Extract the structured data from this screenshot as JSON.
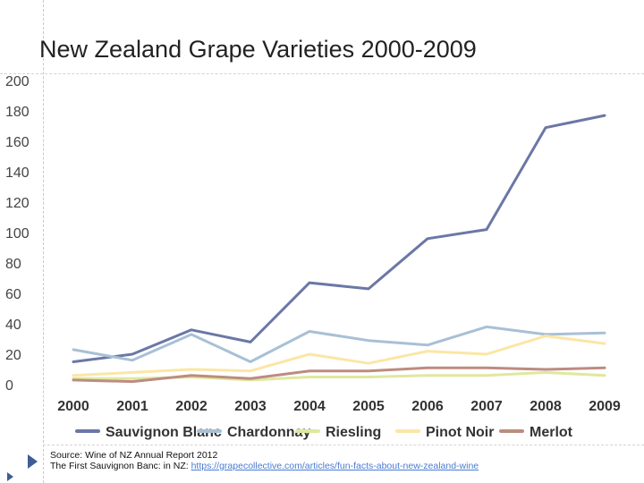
{
  "chart_data": {
    "type": "line",
    "title": "New Zealand Grape Varieties 2000-2009",
    "xlabel": "",
    "ylabel": "",
    "ylim": [
      0,
      200
    ],
    "yticks": [
      0,
      20,
      40,
      60,
      80,
      100,
      120,
      140,
      160,
      180,
      200
    ],
    "categories": [
      "2000",
      "2001",
      "2002",
      "2003",
      "2004",
      "2005",
      "2006",
      "2007",
      "2008",
      "2009"
    ],
    "legend_position": "bottom",
    "grid": false,
    "series": [
      {
        "name": "Sauvignon Blanc",
        "color": "#6b77a6",
        "values": [
          15,
          20,
          36,
          28,
          67,
          63,
          96,
          102,
          169,
          177
        ]
      },
      {
        "name": "Chardonnay",
        "color": "#a8c0d6",
        "values": [
          23,
          16,
          33,
          15,
          35,
          29,
          26,
          38,
          33,
          34
        ]
      },
      {
        "name": "Riesling",
        "color": "#dfe89e",
        "values": [
          4,
          4,
          5,
          3,
          5,
          5,
          6,
          6,
          8,
          6
        ]
      },
      {
        "name": "Pinot Noir",
        "color": "#fbe6a6",
        "values": [
          6,
          8,
          10,
          9,
          20,
          14,
          22,
          20,
          32,
          27
        ]
      },
      {
        "name": "Merlot",
        "color": "#bd8c80",
        "values": [
          3,
          2,
          6,
          4,
          9,
          9,
          11,
          11,
          10,
          11
        ]
      }
    ]
  },
  "source": {
    "line1": "Source: Wine of NZ Annual Report 2012",
    "line2_prefix": "The First Sauvignon Banc: in NZ: ",
    "line2_link": "https://grapecollective.com/articles/fun-facts-about-new-zealand-wine"
  }
}
